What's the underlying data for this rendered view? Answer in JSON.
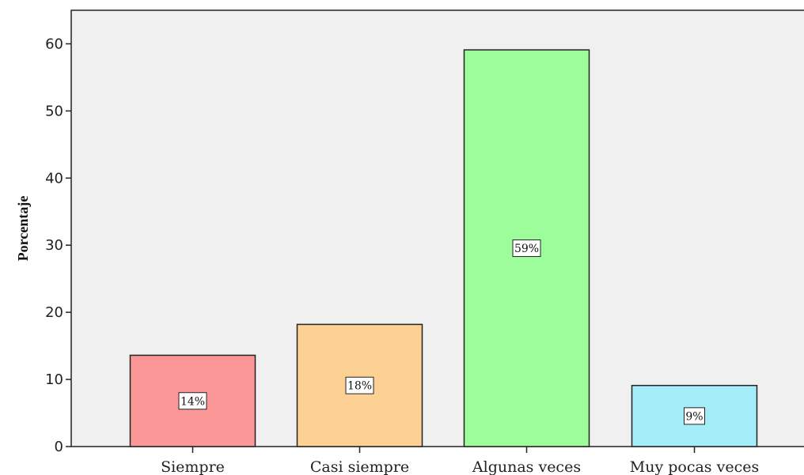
{
  "chart_data": {
    "type": "bar",
    "title": "",
    "xlabel": "",
    "ylabel": "Porcentaje",
    "ylim": [
      0,
      65
    ],
    "yticks": [
      0,
      10,
      20,
      30,
      40,
      50,
      60
    ],
    "grid": false,
    "categories": [
      "Siempre",
      "Casi siempre",
      "Algunas veces",
      "Muy pocas veces"
    ],
    "values": [
      13.6,
      18.2,
      59.1,
      9.1
    ],
    "data_labels": [
      "14%",
      "18%",
      "59%",
      "9%"
    ],
    "colors": [
      "#fb9797",
      "#fdd193",
      "#9dfd9a",
      "#a5ecf9"
    ],
    "background_color": "#f0f0f0"
  }
}
